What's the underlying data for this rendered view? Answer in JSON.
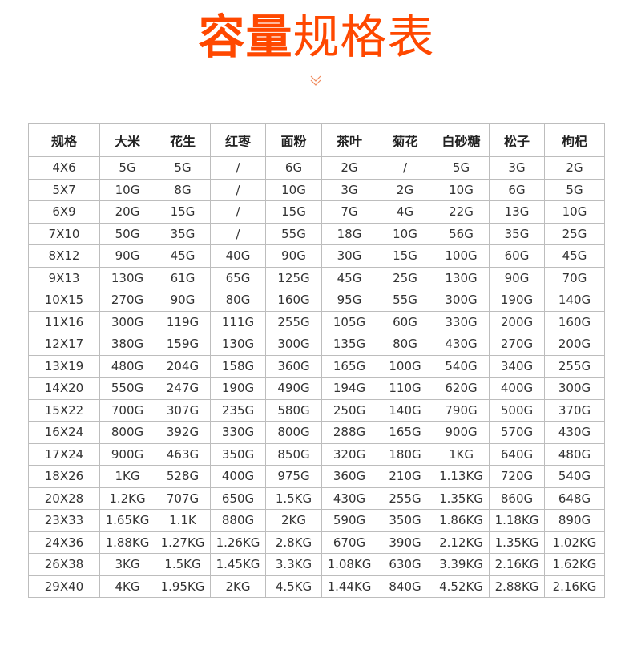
{
  "title": {
    "bold": "容量",
    "regular": "规格表"
  },
  "colors": {
    "accent": "#ff4800",
    "border": "#bdbdbd"
  },
  "icon": "double-chevron-down-icon",
  "table": {
    "headers": [
      "规格",
      "大米",
      "花生",
      "红枣",
      "面粉",
      "茶叶",
      "菊花",
      "白砂糖",
      "松子",
      "枸杞"
    ],
    "rows": [
      [
        "4X6",
        "5G",
        "5G",
        "/",
        "6G",
        "2G",
        "/",
        "5G",
        "3G",
        "2G"
      ],
      [
        "5X7",
        "10G",
        "8G",
        "/",
        "10G",
        "3G",
        "2G",
        "10G",
        "6G",
        "5G"
      ],
      [
        "6X9",
        "20G",
        "15G",
        "/",
        "15G",
        "7G",
        "4G",
        "22G",
        "13G",
        "10G"
      ],
      [
        "7X10",
        "50G",
        "35G",
        "/",
        "55G",
        "18G",
        "10G",
        "56G",
        "35G",
        "25G"
      ],
      [
        "8X12",
        "90G",
        "45G",
        "40G",
        "90G",
        "30G",
        "15G",
        "100G",
        "60G",
        "45G"
      ],
      [
        "9X13",
        "130G",
        "61G",
        "65G",
        "125G",
        "45G",
        "25G",
        "130G",
        "90G",
        "70G"
      ],
      [
        "10X15",
        "270G",
        "90G",
        "80G",
        "160G",
        "95G",
        "55G",
        "300G",
        "190G",
        "140G"
      ],
      [
        "11X16",
        "300G",
        "119G",
        "111G",
        "255G",
        "105G",
        "60G",
        "330G",
        "200G",
        "160G"
      ],
      [
        "12X17",
        "380G",
        "159G",
        "130G",
        "300G",
        "135G",
        "80G",
        "430G",
        "270G",
        "200G"
      ],
      [
        "13X19",
        "480G",
        "204G",
        "158G",
        "360G",
        "165G",
        "100G",
        "540G",
        "340G",
        "255G"
      ],
      [
        "14X20",
        "550G",
        "247G",
        "190G",
        "490G",
        "194G",
        "110G",
        "620G",
        "400G",
        "300G"
      ],
      [
        "15X22",
        "700G",
        "307G",
        "235G",
        "580G",
        "250G",
        "140G",
        "790G",
        "500G",
        "370G"
      ],
      [
        "16X24",
        "800G",
        "392G",
        "330G",
        "800G",
        "288G",
        "165G",
        "900G",
        "570G",
        "430G"
      ],
      [
        "17X24",
        "900G",
        "463G",
        "350G",
        "850G",
        "320G",
        "180G",
        "1KG",
        "640G",
        "480G"
      ],
      [
        "18X26",
        "1KG",
        "528G",
        "400G",
        "975G",
        "360G",
        "210G",
        "1.13KG",
        "720G",
        "540G"
      ],
      [
        "20X28",
        "1.2KG",
        "707G",
        "650G",
        "1.5KG",
        "430G",
        "255G",
        "1.35KG",
        "860G",
        "648G"
      ],
      [
        "23X33",
        "1.65KG",
        "1.1K",
        "880G",
        "2KG",
        "590G",
        "350G",
        "1.86KG",
        "1.18KG",
        "890G"
      ],
      [
        "24X36",
        "1.88KG",
        "1.27KG",
        "1.26KG",
        "2.8KG",
        "670G",
        "390G",
        "2.12KG",
        "1.35KG",
        "1.02KG"
      ],
      [
        "26X38",
        "3KG",
        "1.5KG",
        "1.45KG",
        "3.3KG",
        "1.08KG",
        "630G",
        "3.39KG",
        "2.16KG",
        "1.62KG"
      ],
      [
        "29X40",
        "4KG",
        "1.95KG",
        "2KG",
        "4.5KG",
        "1.44KG",
        "840G",
        "4.52KG",
        "2.88KG",
        "2.16KG"
      ]
    ]
  }
}
